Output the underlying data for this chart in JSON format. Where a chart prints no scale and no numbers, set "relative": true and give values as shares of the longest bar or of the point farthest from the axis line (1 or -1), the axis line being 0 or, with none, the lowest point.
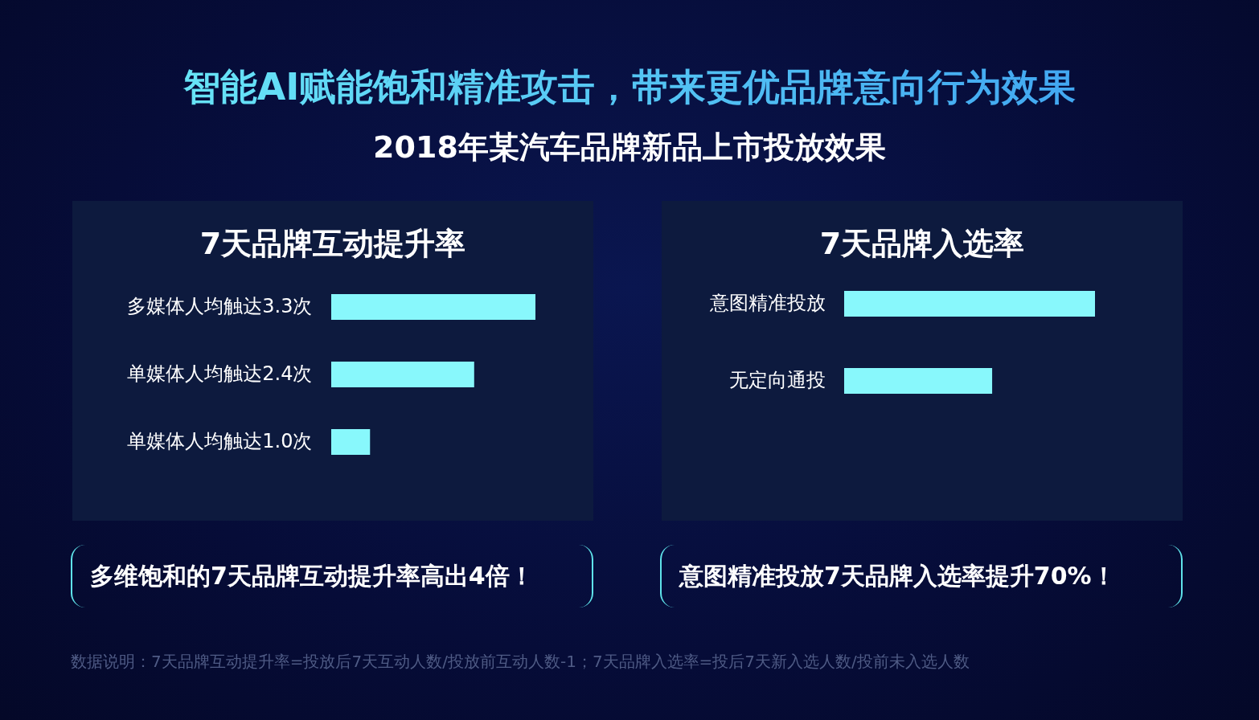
{
  "chart_data": [
    {
      "type": "bar",
      "orientation": "horizontal",
      "relative": true,
      "title": "7天品牌互动提升率",
      "categories": [
        "多媒体人均触达3.3次",
        "单媒体人均触达2.4次",
        "单媒体人均触达1.0次"
      ],
      "values": [
        1,
        0.7,
        0.19
      ],
      "color": "#88f8fc",
      "annotations": [
        "多维饱和的7天品牌互动提升率高出4倍！",
        "智能AI赋能饱和精准攻击，带来更优品牌意向行为效果",
        "2018年某汽车品牌新品上市投放效果"
      ]
    },
    {
      "type": "bar",
      "orientation": "horizontal",
      "relative": true,
      "title": "7天品牌入选率",
      "categories": [
        "意图精准投放",
        "无定向通投"
      ],
      "values": [
        1,
        0.59
      ],
      "color": "#88f8fc",
      "annotations": [
        "意图精准投放7天品牌入选率提升70%！",
        "数据说明：7天品牌互动提升率=投放后7天互动人数/投放前互动人数-1；7天品牌入选率=投后7天新入选人数/投前未入选人数"
      ]
    }
  ]
}
